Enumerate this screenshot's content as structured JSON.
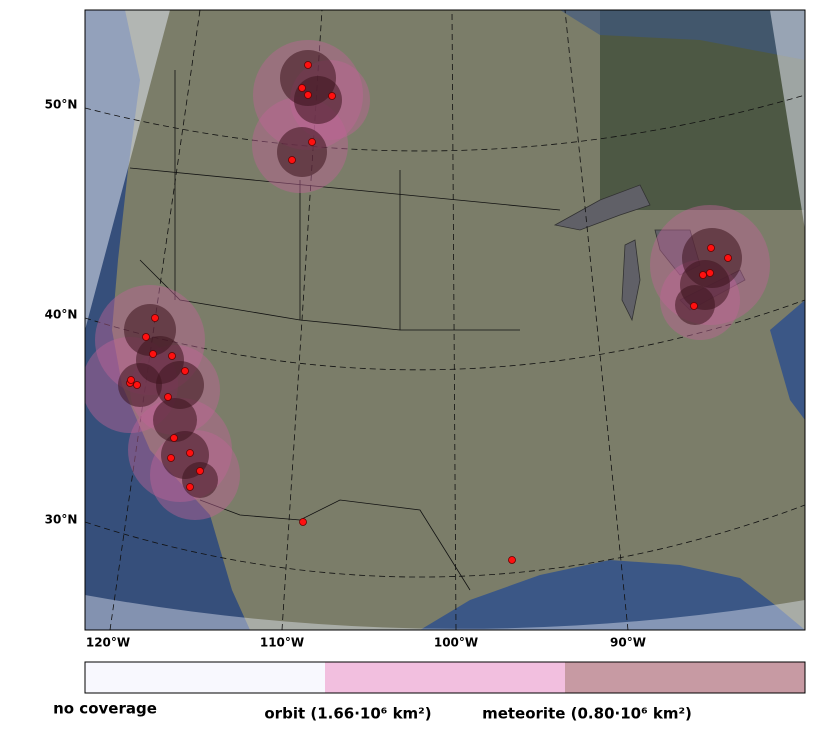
{
  "map": {
    "lat_labels": [
      "50°N",
      "40°N",
      "30°N"
    ],
    "lon_labels": [
      "120°W",
      "110°W",
      "100°W",
      "90°W"
    ],
    "legend": [
      "no coverage",
      "orbit (1.66·10⁶ km²)",
      "meteorite (0.80·10⁶ km²)"
    ]
  }
}
